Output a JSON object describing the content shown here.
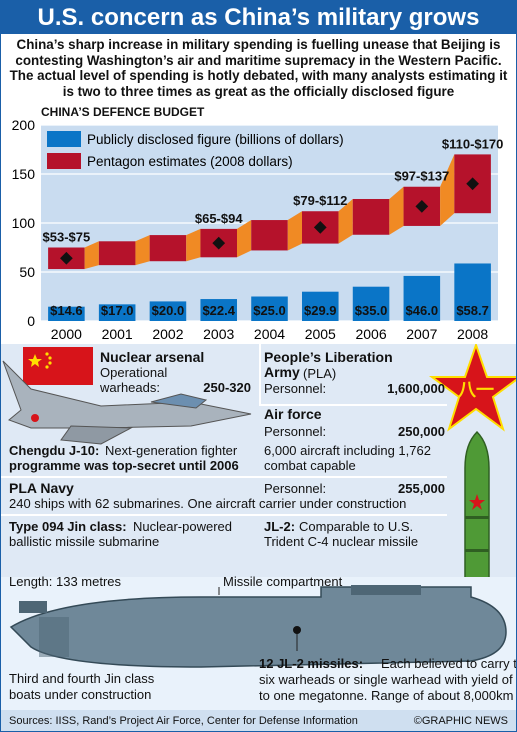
{
  "title": "U.S. concern as China’s military grows",
  "intro": "China’s sharp increase in military spending is fuelling unease that Beijing is contesting Washington’s air and maritime supremacy in the Western Pacific. The actual level of spending is hotly debated, with many analysts estimating it is two to three times as great as the officially disclosed figure",
  "chart_data": {
    "type": "bar",
    "title": "CHINA’S DEFENCE BUDGET",
    "categories": [
      "2000",
      "2001",
      "2002",
      "2003",
      "2004",
      "2005",
      "2006",
      "2007",
      "2008"
    ],
    "series": [
      {
        "name": "Publicly disclosed figure (billions of dollars)",
        "values": [
          14.6,
          17.0,
          20.0,
          22.4,
          25.0,
          29.9,
          35.0,
          46.0,
          58.7
        ],
        "labels": [
          "$14.6",
          "$17.0",
          "$20.0",
          "$22.4",
          "$25.0",
          "$29.9",
          "$35.0",
          "$46.0",
          "$58.7"
        ]
      },
      {
        "name": "Pentagon estimates (2008 dollars)",
        "ranges": [
          {
            "year": "2000",
            "low": 53,
            "high": 75,
            "label": "$53-$75"
          },
          {
            "year": "2003",
            "low": 65,
            "high": 94,
            "label": "$65-$94"
          },
          {
            "year": "2005",
            "low": 79,
            "high": 112,
            "label": "$79-$112"
          },
          {
            "year": "2007",
            "low": 97,
            "high": 137,
            "label": "$97-$137"
          },
          {
            "year": "2008",
            "low": 110,
            "high": 170,
            "label": "$110-$170"
          }
        ]
      }
    ],
    "yticks": [
      0,
      50,
      100,
      150,
      200
    ],
    "ylim": [
      0,
      200
    ],
    "grid": true,
    "legend": "top-left"
  },
  "colors": {
    "blue": "#0a75c7",
    "red": "#b5122b",
    "orange": "#f08a24",
    "bg_blue": "#1a5fa8",
    "plot_bg": "#c9dcf0"
  },
  "nuclear": {
    "heading": "Nuclear arsenal",
    "line1": "Operational",
    "label": "warheads:",
    "value": "250-320"
  },
  "pla": {
    "heading": "People’s Liberation",
    "heading2": "Army",
    "abbr": "(PLA)",
    "label": "Personnel:",
    "value": "1,600,000"
  },
  "airforce": {
    "heading": "Air force",
    "label": "Personnel:",
    "value": "250,000",
    "note1": "6,000 aircraft including 1,762",
    "note2": "combat capable"
  },
  "j10": {
    "title": "Chengdu J-10:",
    "text1": "Next-generation fighter",
    "text2": "programme was top-secret until 2006"
  },
  "navy": {
    "heading": "PLA Navy",
    "label": "Personnel:",
    "value": "255,000",
    "note": "240 ships with 62 submarines. One aircraft carrier under construction"
  },
  "jin": {
    "title": "Type 094 Jin class:",
    "text1": "Nuclear-powered",
    "text2": "ballistic missile submarine"
  },
  "jl2": {
    "title": "JL-2:",
    "text1": "Comparable to U.S.",
    "text2": "Trident C-4 nuclear missile"
  },
  "sub": {
    "length": "Length: 133 metres",
    "compartment": "Missile compartment",
    "note1": "Third and fourth Jin class",
    "note2": "boats under construction",
    "missiles_title": "12 JL-2 missiles:",
    "missiles_text1": "Each believed to carry three to",
    "missiles_text2": "six warheads or single warhead with yield of up",
    "missiles_text3": "to one megatonne. Range of about 8,000km"
  },
  "sources": "Sources: IISS, Rand’s Project Air Force, Center for Defense Information",
  "credit": "©GRAPHIC NEWS",
  "icons": [
    "china-flag-icon",
    "fighter-jet-icon",
    "pla-star-icon",
    "missile-icon",
    "submarine-icon"
  ]
}
